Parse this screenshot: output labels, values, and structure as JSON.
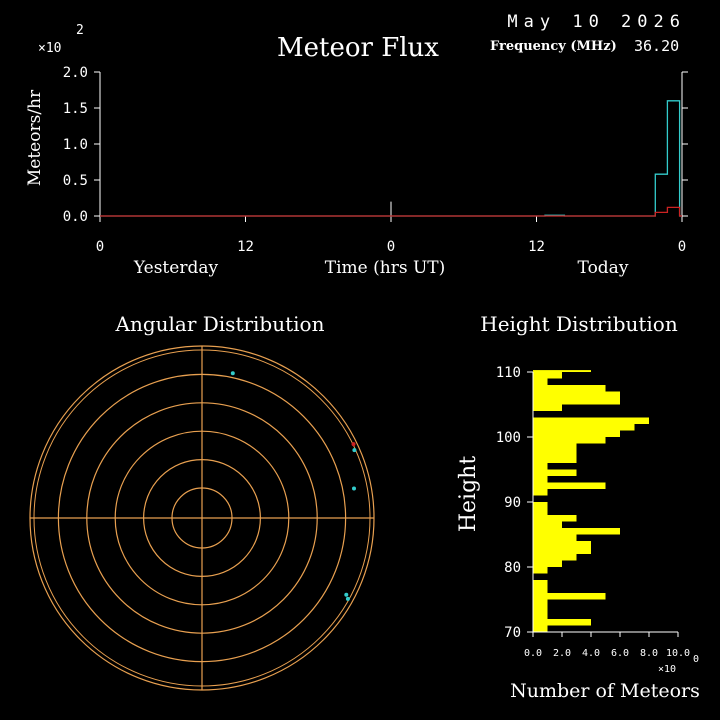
{
  "header": {
    "date": "May 10 2026",
    "title": "Meteor Flux",
    "frequency_label": "Frequency (MHz)",
    "frequency_value": "36.20"
  },
  "colors": {
    "background": "#000000",
    "text": "#ffffff",
    "series_a": "#33cccc",
    "series_b": "#cc2222",
    "rings": "#e8a050",
    "height_bars": "#ffff00"
  },
  "chart_data": [
    {
      "type": "line",
      "id": "flux",
      "ylabel": "Meteors/hr",
      "y_multiplier": "×10",
      "y_exponent": "2",
      "ylim": [
        0,
        2.0
      ],
      "yticks": [
        "0.0",
        "0.5",
        "1.0",
        "1.5",
        "2.0"
      ],
      "xlim": [
        0,
        48
      ],
      "xticks": [
        {
          "x": 0,
          "label": "0"
        },
        {
          "x": 12,
          "label": "12"
        },
        {
          "x": 24,
          "label": "0"
        },
        {
          "x": 36,
          "label": "12"
        },
        {
          "x": 48,
          "label": "0"
        }
      ],
      "xlabel_left": "Yesterday",
      "xlabel": "Time (hrs UT)",
      "xlabel_right": "Today",
      "series": [
        {
          "color": "#33cccc",
          "x": [
            0,
            36.7,
            36.7,
            38.3,
            38.3,
            45.8,
            45.8,
            46.8,
            46.8,
            47.8,
            47.8,
            48
          ],
          "y": [
            0,
            0,
            0.01,
            0.01,
            0,
            0,
            0.58,
            0.58,
            1.6,
            1.6,
            0,
            0
          ]
        },
        {
          "color": "#cc2222",
          "x": [
            0,
            45.8,
            45.8,
            46.8,
            46.8,
            47.8,
            47.8,
            48
          ],
          "y": [
            0,
            0,
            0.05,
            0.05,
            0.12,
            0.12,
            0,
            0
          ]
        }
      ],
      "marker_x": 24,
      "marker_y": 0.2
    },
    {
      "type": "scatter",
      "id": "angular",
      "title": "Angular Distribution",
      "ring_count": 6,
      "points": [
        {
          "angle_deg": 12,
          "r": 0.86,
          "color": "#33cccc"
        },
        {
          "angle_deg": 64,
          "r": 0.98,
          "color": "#cc2222"
        },
        {
          "angle_deg": 66,
          "r": 0.97,
          "color": "#33cccc"
        },
        {
          "angle_deg": 79,
          "r": 0.9,
          "color": "#33cccc"
        },
        {
          "angle_deg": 118,
          "r": 0.95,
          "color": "#33cccc"
        },
        {
          "angle_deg": 119,
          "r": 0.97,
          "color": "#33cccc"
        }
      ]
    },
    {
      "type": "bar",
      "id": "height",
      "title": "Height Distribution",
      "ylabel": "Height",
      "xlabel": "Number of Meteors",
      "x_multiplier": "×10",
      "x_exponent": "0",
      "xlim": [
        0,
        10
      ],
      "xticks": [
        "0.0",
        "2.0",
        "4.0",
        "6.0",
        "8.0",
        "10.0"
      ],
      "ylim": [
        70,
        110
      ],
      "yticks": [
        "70",
        "80",
        "90",
        "100",
        "110"
      ],
      "bin_start": 70,
      "bin_width": 1,
      "values": [
        1,
        4,
        1,
        1,
        1,
        5,
        1,
        1,
        0,
        1,
        2,
        3,
        4,
        4,
        3,
        6,
        2,
        3,
        1,
        1,
        0,
        1,
        5,
        1,
        3,
        1,
        3,
        3,
        3,
        5,
        6,
        7,
        8,
        0,
        2,
        6,
        6,
        5,
        1,
        2,
        4
      ]
    }
  ]
}
